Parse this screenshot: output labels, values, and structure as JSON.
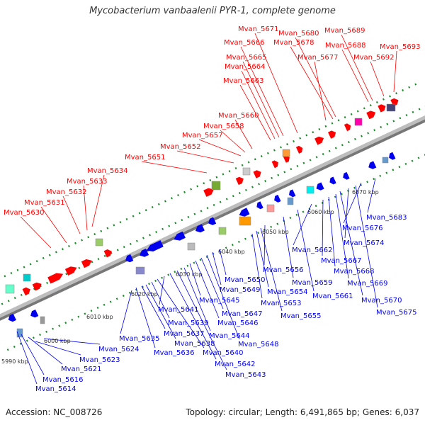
{
  "title": "Mycobacterium vanbaalenii PYR-1, complete genome",
  "accession": "Accession: NC_008726",
  "summary": "Topology: circular; Length: 6,491,865 bp; Genes: 6,037",
  "colors": {
    "forward": "#ff0000",
    "reverse": "#0000ee",
    "backbone": "#999999",
    "ruler": "#1b8a2a"
  },
  "kbp_ticks": [
    "5990 kbp",
    "6000 kbp",
    "6010 kbp",
    "6020 kbp",
    "6030 kbp",
    "6040 kbp",
    "6050 kbp",
    "6060 kbp",
    "6070 kbp"
  ],
  "forward_genes": [
    "Mvan_5630",
    "Mvan_5631",
    "Mvan_5632",
    "Mvan_5633",
    "Mvan_5634",
    "Mvan_5651",
    "Mvan_5652",
    "Mvan_5657",
    "Mvan_5658",
    "Mvan_5660",
    "Mvan_5663",
    "Mvan_5664",
    "Mvan_5665",
    "Mvan_5666",
    "Mvan_5671",
    "Mvan_5677",
    "Mvan_5678",
    "Mvan_5680",
    "Mvan_5688",
    "Mvan_5689",
    "Mvan_5692",
    "Mvan_5693"
  ],
  "reverse_genes": [
    "Mvan_5614",
    "Mvan_5616",
    "Mvan_5621",
    "Mvan_5623",
    "Mvan_5624",
    "Mvan_5635",
    "Mvan_5636",
    "Mvan_5637",
    "Mvan_5638",
    "Mvan_5639",
    "Mvan_5640",
    "Mvan_5641",
    "Mvan_5642",
    "Mvan_5643",
    "Mvan_5644",
    "Mvan_5645",
    "Mvan_5646",
    "Mvan_5647",
    "Mvan_5648",
    "Mvan_5649",
    "Mvan_5650",
    "Mvan_5653",
    "Mvan_5654",
    "Mvan_5655",
    "Mvan_5656",
    "Mvan_5659",
    "Mvan_5661",
    "Mvan_5662",
    "Mvan_5667",
    "Mvan_5668",
    "Mvan_5669",
    "Mvan_5670",
    "Mvan_5674",
    "Mvan_5675",
    "Mvan_5676",
    "Mvan_5683"
  ]
}
